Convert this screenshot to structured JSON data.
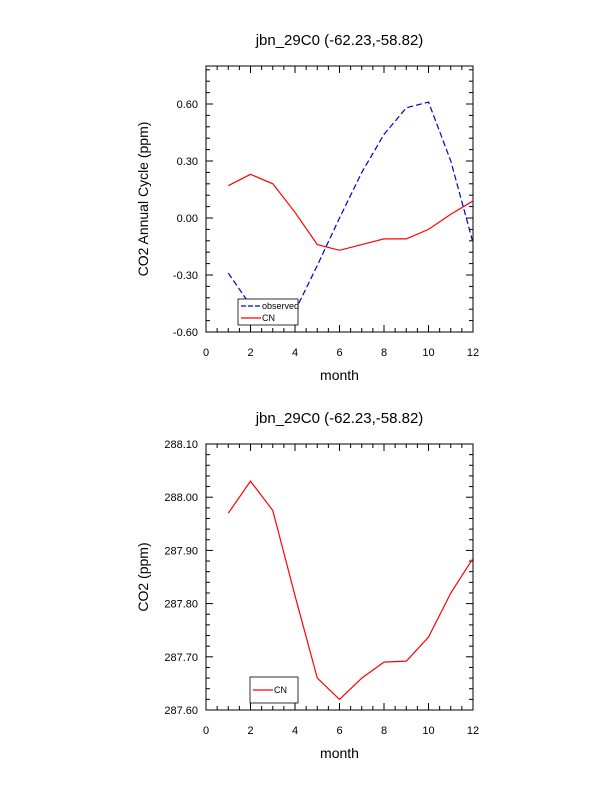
{
  "chart_data": [
    {
      "type": "line",
      "title": "jbn_29C0 (-62.23,-58.82)",
      "xlabel": "month",
      "ylabel": "CO2 Annual Cycle (ppm)",
      "xlim": [
        0,
        12
      ],
      "ylim": [
        -0.6,
        0.8
      ],
      "x_ticks": [
        0,
        2,
        4,
        6,
        8,
        10,
        12
      ],
      "y_ticks": [
        -0.6,
        -0.3,
        0.0,
        0.3,
        0.6
      ],
      "x_tick_labels": [
        "0",
        "2",
        "4",
        "6",
        "8",
        "10",
        "12"
      ],
      "y_tick_labels": [
        "-0.60",
        "-0.30",
        "0.00",
        "0.30",
        "0.60"
      ],
      "grid": false,
      "legend": "bottom-left",
      "x": [
        1,
        2,
        3,
        4,
        5,
        6,
        7,
        8,
        9,
        10,
        11,
        12
      ],
      "series": [
        {
          "name": "observed",
          "color": "#0000cc",
          "style": "dashed",
          "values": [
            -0.29,
            -0.46,
            -0.54,
            -0.49,
            -0.25,
            0.0,
            0.24,
            0.44,
            0.58,
            0.61,
            0.3,
            -0.13
          ]
        },
        {
          "name": "CN",
          "color": "#ff0000",
          "style": "solid",
          "values": [
            0.17,
            0.23,
            0.18,
            0.03,
            -0.14,
            -0.17,
            -0.14,
            -0.11,
            -0.11,
            -0.06,
            0.02,
            0.09
          ]
        }
      ]
    },
    {
      "type": "line",
      "title": "jbn_29C0 (-62.23,-58.82)",
      "xlabel": "month",
      "ylabel": "CO2 (ppm)",
      "xlim": [
        0,
        12
      ],
      "ylim": [
        287.6,
        288.1
      ],
      "x_ticks": [
        0,
        2,
        4,
        6,
        8,
        10,
        12
      ],
      "y_ticks": [
        287.6,
        287.7,
        287.8,
        287.9,
        288.0,
        288.1
      ],
      "x_tick_labels": [
        "0",
        "2",
        "4",
        "6",
        "8",
        "10",
        "12"
      ],
      "y_tick_labels": [
        "287.60",
        "287.70",
        "287.80",
        "287.90",
        "288.00",
        "288.10"
      ],
      "grid": false,
      "legend": "bottom-left",
      "x": [
        1,
        2,
        3,
        4,
        5,
        6,
        7,
        8,
        9,
        10,
        11,
        12
      ],
      "series": [
        {
          "name": "CN",
          "color": "#ff0000",
          "style": "solid",
          "values": [
            287.97,
            288.03,
            287.975,
            287.815,
            287.66,
            287.62,
            287.66,
            287.69,
            287.692,
            287.737,
            287.82,
            287.885
          ]
        }
      ]
    }
  ]
}
